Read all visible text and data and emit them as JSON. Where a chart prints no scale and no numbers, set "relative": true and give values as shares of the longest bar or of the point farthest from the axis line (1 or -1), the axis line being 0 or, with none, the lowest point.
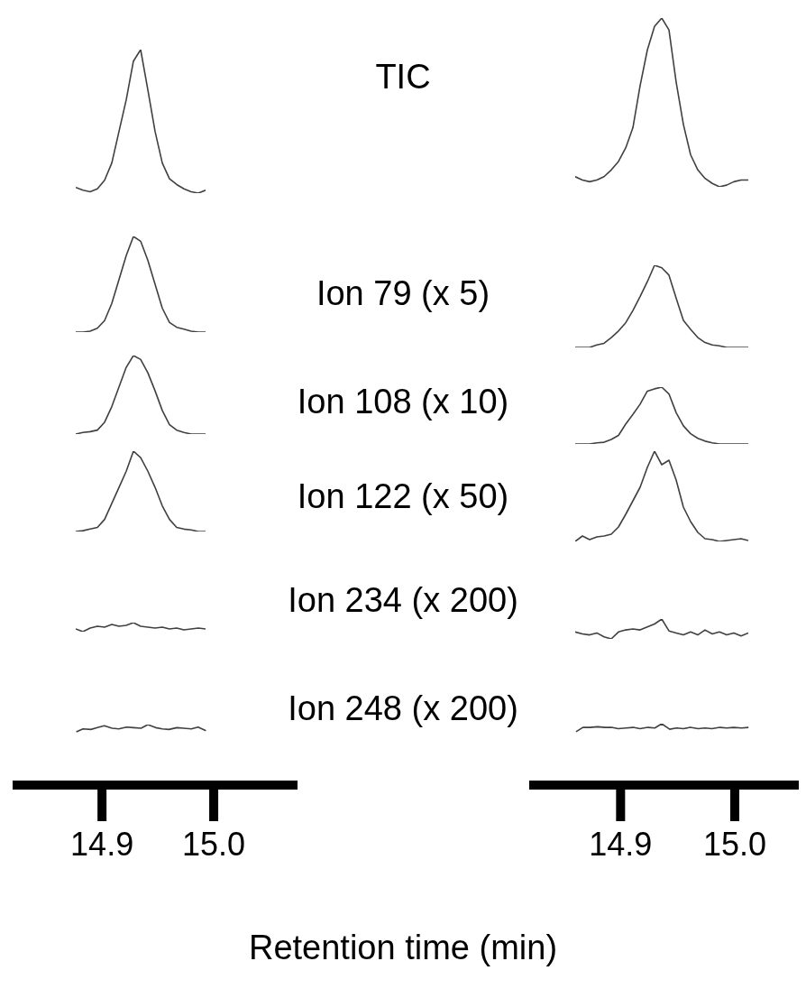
{
  "chart_data": [
    {
      "type": "line",
      "relative": true,
      "tick_labels": false,
      "color": "#404040",
      "categories": [
        null,
        null,
        null,
        null,
        null,
        null,
        null,
        null,
        null,
        null,
        null,
        null,
        null,
        null,
        null,
        null,
        null,
        null,
        null
      ],
      "values": [
        0.04,
        0.02,
        0.01,
        0.03,
        0.09,
        0.21,
        0.43,
        0.65,
        0.92,
        1,
        0.72,
        0.43,
        0.21,
        0.1,
        0.06,
        0.03,
        0.01,
        0,
        0.02
      ]
    },
    {
      "type": "line",
      "relative": true,
      "tick_labels": false,
      "color": "#404040",
      "categories": [
        null,
        null,
        null,
        null,
        null,
        null,
        null,
        null,
        null,
        null,
        null,
        null,
        null,
        null,
        null,
        null,
        null,
        null,
        null,
        null,
        null,
        null,
        null,
        null,
        null
      ],
      "title": "TIC",
      "values": [
        0.06,
        0.04,
        0.03,
        0.04,
        0.06,
        0.1,
        0.15,
        0.23,
        0.35,
        0.6,
        0.81,
        0.95,
        1,
        0.93,
        0.62,
        0.37,
        0.19,
        0.1,
        0.05,
        0.02,
        0,
        0.01,
        0.03,
        0.04,
        0.04
      ]
    },
    {
      "type": "line",
      "relative": true,
      "tick_labels": false,
      "color": "#404040",
      "categories": [
        null,
        null,
        null,
        null,
        null,
        null,
        null,
        null,
        null,
        null,
        null,
        null,
        null,
        null,
        null,
        null,
        null,
        null,
        null
      ],
      "values": [
        0,
        0,
        0.01,
        0.04,
        0.12,
        0.3,
        0.55,
        0.8,
        1,
        0.95,
        0.75,
        0.5,
        0.25,
        0.1,
        0.05,
        0.03,
        0.01,
        0,
        0
      ]
    },
    {
      "type": "line",
      "relative": true,
      "tick_labels": false,
      "color": "#404040",
      "categories": [
        null,
        null,
        null,
        null,
        null,
        null,
        null,
        null,
        null,
        null,
        null,
        null,
        null,
        null,
        null,
        null,
        null,
        null,
        null,
        null,
        null,
        null,
        null,
        null,
        null
      ],
      "title": "Ion 79 (x 5)",
      "values": [
        0,
        0,
        0,
        0.03,
        0.05,
        0.12,
        0.2,
        0.3,
        0.45,
        0.62,
        0.8,
        1,
        0.97,
        0.88,
        0.6,
        0.33,
        0.22,
        0.12,
        0.06,
        0.03,
        0.02,
        0,
        0,
        0,
        0
      ]
    },
    {
      "type": "line",
      "relative": true,
      "tick_labels": false,
      "color": "#404040",
      "categories": [
        null,
        null,
        null,
        null,
        null,
        null,
        null,
        null,
        null,
        null,
        null,
        null,
        null,
        null,
        null,
        null,
        null,
        null,
        null
      ],
      "values": [
        0,
        0.02,
        0.03,
        0.05,
        0.15,
        0.35,
        0.6,
        0.85,
        1,
        0.95,
        0.78,
        0.55,
        0.3,
        0.12,
        0.05,
        0.02,
        0,
        0,
        0
      ]
    },
    {
      "type": "line",
      "relative": true,
      "tick_labels": false,
      "color": "#404040",
      "categories": [
        null,
        null,
        null,
        null,
        null,
        null,
        null,
        null,
        null,
        null,
        null,
        null,
        null,
        null,
        null,
        null,
        null,
        null,
        null,
        null,
        null,
        null,
        null,
        null,
        null
      ],
      "title": "Ion 108 (x 10)",
      "values": [
        0,
        0,
        0,
        0.02,
        0.03,
        0.08,
        0.15,
        0.35,
        0.52,
        0.7,
        0.93,
        0.97,
        1,
        0.88,
        0.55,
        0.32,
        0.18,
        0.1,
        0.05,
        0.02,
        0,
        0,
        0,
        0,
        0
      ]
    },
    {
      "type": "line",
      "relative": true,
      "tick_labels": false,
      "color": "#404040",
      "categories": [
        null,
        null,
        null,
        null,
        null,
        null,
        null,
        null,
        null,
        null,
        null,
        null,
        null,
        null,
        null,
        null,
        null,
        null,
        null
      ],
      "values": [
        0,
        0.01,
        0.03,
        0.05,
        0.15,
        0.35,
        0.55,
        0.75,
        1,
        0.92,
        0.75,
        0.55,
        0.32,
        0.15,
        0.05,
        0.03,
        0.02,
        0,
        0
      ]
    },
    {
      "type": "line",
      "relative": true,
      "tick_labels": false,
      "color": "#404040",
      "categories": [
        null,
        null,
        null,
        null,
        null,
        null,
        null,
        null,
        null,
        null,
        null,
        null,
        null,
        null,
        null,
        null,
        null,
        null,
        null,
        null,
        null,
        null,
        null,
        null,
        null
      ],
      "title": "Ion 122 (x 50)",
      "values": [
        0,
        0.06,
        0.02,
        0.05,
        0.06,
        0.08,
        0.16,
        0.3,
        0.45,
        0.6,
        0.82,
        1,
        0.85,
        0.9,
        0.68,
        0.38,
        0.22,
        0.1,
        0.03,
        0.02,
        0,
        0.01,
        0.02,
        0.03,
        0.01
      ]
    },
    {
      "type": "line",
      "relative": true,
      "tick_labels": false,
      "color": "#404040",
      "categories": [
        null,
        null,
        null,
        null,
        null,
        null,
        null,
        null,
        null,
        null,
        null,
        null,
        null,
        null,
        null,
        null,
        null,
        null,
        null
      ],
      "values": [
        0.3,
        0,
        0.4,
        0.6,
        0.5,
        0.8,
        0.6,
        0.7,
        1,
        0.6,
        0.5,
        0.4,
        0.5,
        0.3,
        0.4,
        0.2,
        0.3,
        0.4,
        0.3
      ]
    },
    {
      "type": "line",
      "relative": true,
      "tick_labels": false,
      "color": "#404040",
      "categories": [
        null,
        null,
        null,
        null,
        null,
        null,
        null,
        null,
        null,
        null,
        null,
        null,
        null,
        null,
        null,
        null,
        null,
        null,
        null,
        null,
        null,
        null,
        null,
        null,
        null
      ],
      "title": "Ion 234 (x 200)",
      "values": [
        0.35,
        0.25,
        0.2,
        0.3,
        0.1,
        0,
        0.35,
        0.45,
        0.5,
        0.45,
        0.6,
        0.75,
        1,
        0.4,
        0.3,
        0.2,
        0.35,
        0.2,
        0.45,
        0.25,
        0.35,
        0.2,
        0.3,
        0.15,
        0.3
      ]
    },
    {
      "type": "line",
      "title": "Ion 248 (x 200)",
      "xlabel": "Retention time  (min)",
      "relative": true,
      "tick_labels": "x",
      "xlim": [
        14.82,
        15.075
      ],
      "xticks": [
        14.9,
        {
          "value": 15,
          "label": "15.0"
        }
      ],
      "color": "#404040",
      "x": [
        14.877,
        14.883,
        14.89,
        14.896,
        14.902,
        14.909,
        14.915,
        14.922,
        14.928,
        14.935,
        14.941,
        14.948,
        14.954,
        14.96,
        14.967,
        14.973,
        14.98,
        14.986,
        14.993
      ],
      "values": [
        0.88,
        0.93,
        0.92,
        0.95,
        0.98,
        0.94,
        0.93,
        0.96,
        0.95,
        0.94,
        1,
        0.95,
        0.93,
        0.92,
        0.95,
        0.94,
        0.93,
        0.96,
        0.9
      ]
    },
    {
      "type": "line",
      "relative": true,
      "tick_labels": "x",
      "xlim": [
        14.82,
        15.06
      ],
      "xticks": [
        14.9,
        {
          "value": 15,
          "label": "15.0"
        }
      ],
      "color": "#404040",
      "x": [
        14.861,
        14.867,
        14.873,
        14.88,
        14.886,
        14.892,
        14.898,
        14.905,
        14.911,
        14.917,
        14.924,
        14.93,
        14.936,
        14.943,
        14.949,
        14.955,
        14.961,
        14.968,
        14.974,
        14.98,
        14.987,
        14.993,
        14.999,
        15.006,
        15.012
      ],
      "values": [
        0.87,
        0.94,
        0.94,
        0.95,
        0.94,
        0.94,
        0.92,
        0.93,
        0.94,
        0.92,
        0.94,
        0.93,
        1,
        0.91,
        0.93,
        0.92,
        0.94,
        0.92,
        0.93,
        0.92,
        0.94,
        0.93,
        0.94,
        0.93,
        0.94
      ]
    }
  ]
}
